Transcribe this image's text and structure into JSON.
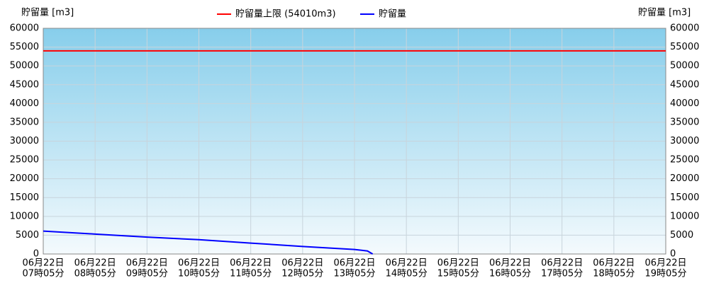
{
  "chart_data": {
    "type": "line",
    "y_label": "貯留量 [m3]",
    "ylim": [
      0,
      60000
    ],
    "yticks": [
      0,
      5000,
      10000,
      15000,
      20000,
      25000,
      30000,
      35000,
      40000,
      45000,
      50000,
      55000,
      60000
    ],
    "xlim": [
      "07:05",
      "19:05"
    ],
    "xticks": [
      {
        "value": "07:05",
        "label": [
          "06月22日",
          "07時05分"
        ]
      },
      {
        "value": "08:05",
        "label": [
          "06月22日",
          "08時05分"
        ]
      },
      {
        "value": "09:05",
        "label": [
          "06月22日",
          "09時05分"
        ]
      },
      {
        "value": "10:05",
        "label": [
          "06月22日",
          "10時05分"
        ]
      },
      {
        "value": "11:05",
        "label": [
          "06月22日",
          "11時05分"
        ]
      },
      {
        "value": "12:05",
        "label": [
          "06月22日",
          "12時05分"
        ]
      },
      {
        "value": "13:05",
        "label": [
          "06月22日",
          "13時05分"
        ]
      },
      {
        "value": "14:05",
        "label": [
          "06月22日",
          "14時05分"
        ]
      },
      {
        "value": "15:05",
        "label": [
          "06月22日",
          "15時05分"
        ]
      },
      {
        "value": "16:05",
        "label": [
          "06月22日",
          "16時05分"
        ]
      },
      {
        "value": "17:05",
        "label": [
          "06月22日",
          "17時05分"
        ]
      },
      {
        "value": "18:05",
        "label": [
          "06月22日",
          "18時05分"
        ]
      },
      {
        "value": "19:05",
        "label": [
          "06月22日",
          "19時05分"
        ]
      }
    ],
    "grid": true,
    "limit": {
      "name": "貯留量上限 (54010m3)",
      "color": "#ff0000",
      "value": 54010
    },
    "series": [
      {
        "name": "貯留量",
        "color": "#0000ff",
        "x": [
          "07:05",
          "08:05",
          "09:05",
          "10:05",
          "11:05",
          "12:05",
          "13:05",
          "13:20",
          "13:26"
        ],
        "values": [
          6100,
          5300,
          4500,
          3800,
          2900,
          2000,
          1200,
          800,
          0
        ]
      }
    ]
  }
}
